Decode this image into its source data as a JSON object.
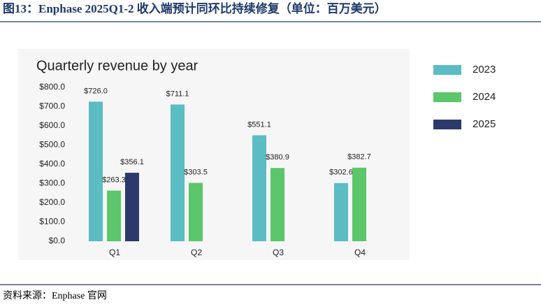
{
  "figure_title": "图13：Enphase 2025Q1-2 收入端预计同环比持续修复（单位：百万美元）",
  "source": "资料来源：Enphase 官网",
  "chart_data": {
    "type": "bar",
    "title": "Quarterly revenue by year",
    "categories": [
      "Q1",
      "Q2",
      "Q3",
      "Q4"
    ],
    "series": [
      {
        "name": "2023",
        "color": "#5bbcc4",
        "values": [
          726.0,
          711.1,
          551.1,
          302.6
        ],
        "value_labels": [
          "$726.0",
          "$711.1",
          "$551.1",
          "$302.6"
        ]
      },
      {
        "name": "2024",
        "color": "#5cc66a",
        "values": [
          263.3,
          303.5,
          380.9,
          382.7
        ],
        "value_labels": [
          "$263.3",
          "$303.5",
          "$380.9",
          "$382.7"
        ]
      },
      {
        "name": "2025",
        "color": "#2b3a6b",
        "values": [
          356.1,
          null,
          null,
          null
        ],
        "value_labels": [
          "$356.1",
          null,
          null,
          null
        ]
      }
    ],
    "ylim": [
      0,
      800
    ],
    "yticks": [
      {
        "value": 0,
        "label": "$0.0"
      },
      {
        "value": 100,
        "label": "$100.0"
      },
      {
        "value": 200,
        "label": "$200.0"
      },
      {
        "value": 300,
        "label": "$300.0"
      },
      {
        "value": 400,
        "label": "$400.0"
      },
      {
        "value": 500,
        "label": "$500.0"
      },
      {
        "value": 600,
        "label": "$600.0"
      },
      {
        "value": 700,
        "label": "$700.0"
      },
      {
        "value": 800,
        "label": "$800.0"
      }
    ],
    "grid": false
  }
}
